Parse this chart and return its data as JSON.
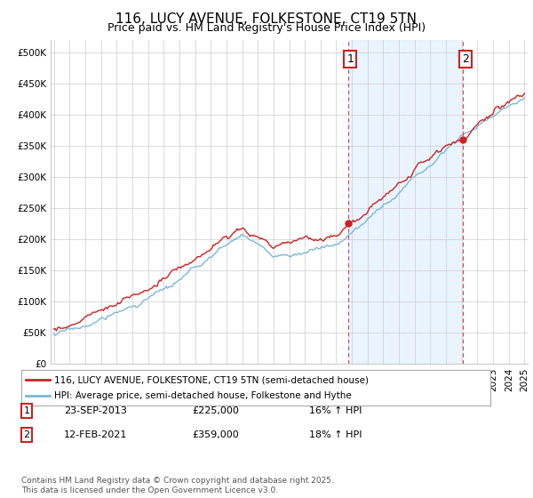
{
  "title": "116, LUCY AVENUE, FOLKESTONE, CT19 5TN",
  "subtitle": "Price paid vs. HM Land Registry's House Price Index (HPI)",
  "hpi_label": "HPI: Average price, semi-detached house, Folkestone and Hythe",
  "property_label": "116, LUCY AVENUE, FOLKESTONE, CT19 5TN (semi-detached house)",
  "footnote": "Contains HM Land Registry data © Crown copyright and database right 2025.\nThis data is licensed under the Open Government Licence v3.0.",
  "annotation1": {
    "num": "1",
    "date": "23-SEP-2013",
    "price": "£225,000",
    "hpi": "16% ↑ HPI"
  },
  "annotation2": {
    "num": "2",
    "date": "12-FEB-2021",
    "price": "£359,000",
    "hpi": "18% ↑ HPI"
  },
  "ylim": [
    0,
    520000
  ],
  "yticks": [
    0,
    50000,
    100000,
    150000,
    200000,
    250000,
    300000,
    350000,
    400000,
    450000,
    500000
  ],
  "ytick_labels": [
    "£0",
    "£50K",
    "£100K",
    "£150K",
    "£200K",
    "£250K",
    "£300K",
    "£350K",
    "£400K",
    "£450K",
    "£500K"
  ],
  "x_start_year": 1995,
  "x_end_year": 2025,
  "sale1_year": 2013.75,
  "sale1_price": 225000,
  "sale2_year": 2021.083,
  "sale2_price": 359000,
  "hpi_color": "#7ab8d8",
  "property_color": "#cc2222",
  "vline_color": "#dd4444",
  "bg_band_color": "#ddeeff",
  "grid_color": "#cccccc",
  "title_fontsize": 11,
  "subtitle_fontsize": 9,
  "tick_fontsize": 7.5,
  "legend_fontsize": 7.5,
  "annot_fontsize": 8
}
